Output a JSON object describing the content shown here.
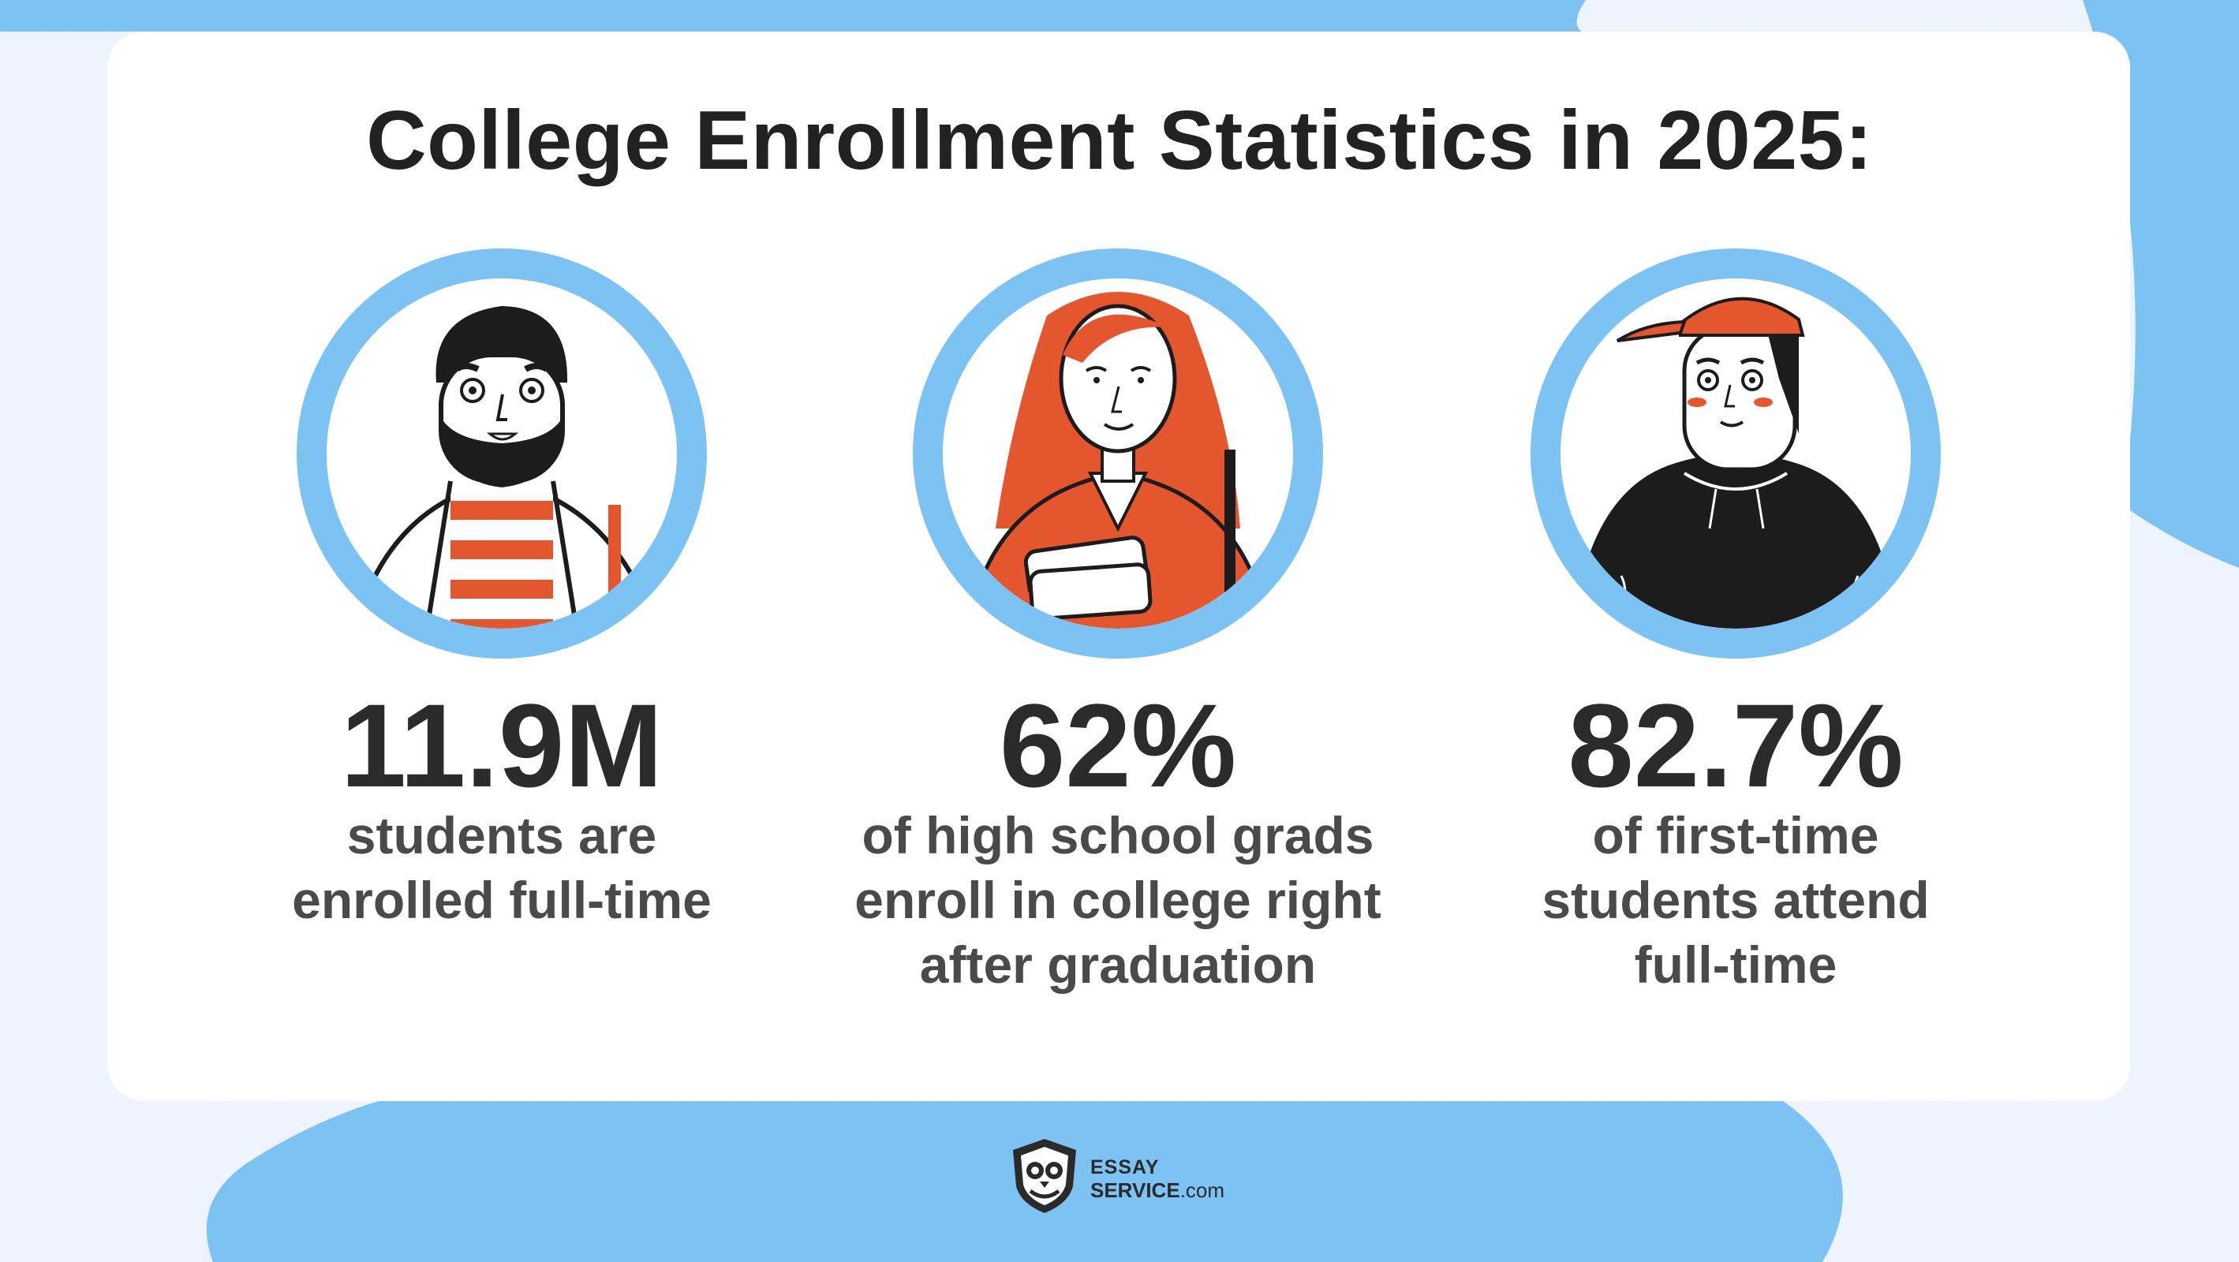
{
  "title": "College Enrollment Statistics in 2025:",
  "colors": {
    "accent": "#7cc2f2",
    "orange": "#e4572e",
    "text": "#2b2b2b",
    "background": "#edf4fd"
  },
  "stats": [
    {
      "value": "11.9M",
      "line1": "students are",
      "line2": "enrolled full-time",
      "line3": "",
      "portrait": "bearded-student-illustration"
    },
    {
      "value": "62%",
      "line1": "of high school grads",
      "line2": "enroll in college right",
      "line3": "after graduation",
      "portrait": "red-haired-student-illustration"
    },
    {
      "value": "82.7%",
      "line1": "of first-time",
      "line2": "students attend",
      "line3": "full-time",
      "portrait": "cap-wearing-student-illustration"
    }
  ],
  "logo": {
    "line1": "ESSAY",
    "brand": "SERVICE",
    "suffix": ".com"
  }
}
